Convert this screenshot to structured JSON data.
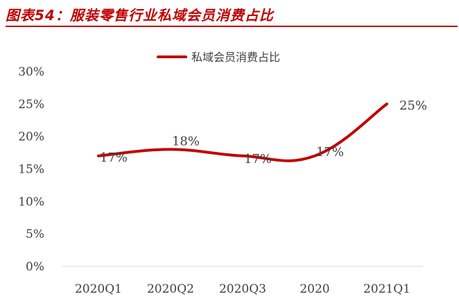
{
  "header": {
    "title": "图表54：服装零售行业私域会员消费占比"
  },
  "colors": {
    "accent": "#c00000",
    "series": "#c00000",
    "axis": "#d9d9d9",
    "text": "#404040"
  },
  "chart_data": {
    "type": "line",
    "categories": [
      "2020Q1",
      "2020Q2",
      "2020Q3",
      "2020",
      "2021Q1"
    ],
    "series": [
      {
        "name": "私域会员消费占比",
        "values": [
          17,
          18,
          17,
          17,
          25
        ],
        "labels": [
          "17%",
          "18%",
          "17%",
          "17%",
          "25%"
        ]
      }
    ],
    "ylim": [
      0,
      30
    ],
    "yticks": [
      "0%",
      "5%",
      "10%",
      "15%",
      "20%",
      "25%",
      "30%"
    ],
    "grid": false,
    "legend": "top-center",
    "smooth": true
  }
}
